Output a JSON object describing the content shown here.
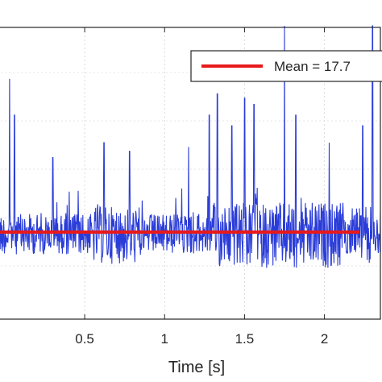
{
  "chart_data": {
    "type": "line",
    "xlabel": "Time [s]",
    "ylabel": "",
    "xlim": [
      -0.05,
      2.35
    ],
    "x_ticks": [
      0.5,
      1,
      1.5,
      2
    ],
    "x_tick_labels": [
      "0.5",
      "1",
      "1.5",
      "2"
    ],
    "grid": true,
    "legend": {
      "placement": "top-right",
      "entries": [
        "Mean = 17.7"
      ]
    },
    "series": [
      {
        "name": "Mean = 17.7",
        "color": "#e8191b",
        "kind": "constant",
        "y_value": 17.7
      },
      {
        "color": "#2a3cd8",
        "kind": "noisy-signal",
        "x_start": -0.05,
        "x_end": 2.35,
        "peaks": [
          {
            "x": 0.03,
            "level": 0.72
          },
          {
            "x": 0.06,
            "level": 0.55
          },
          {
            "x": 0.3,
            "level": 0.35
          },
          {
            "x": 0.62,
            "level": 0.42
          },
          {
            "x": 0.78,
            "level": 0.38
          },
          {
            "x": 1.15,
            "level": 0.4
          },
          {
            "x": 1.28,
            "level": 0.55
          },
          {
            "x": 1.33,
            "level": 0.65
          },
          {
            "x": 1.42,
            "level": 0.5
          },
          {
            "x": 1.5,
            "level": 0.63
          },
          {
            "x": 1.56,
            "level": 0.6
          },
          {
            "x": 1.75,
            "level": 1.0
          },
          {
            "x": 1.82,
            "level": 0.55
          },
          {
            "x": 2.03,
            "level": 0.42
          },
          {
            "x": 2.24,
            "level": 0.5
          },
          {
            "x": 2.3,
            "level": 1.0
          }
        ]
      }
    ]
  }
}
